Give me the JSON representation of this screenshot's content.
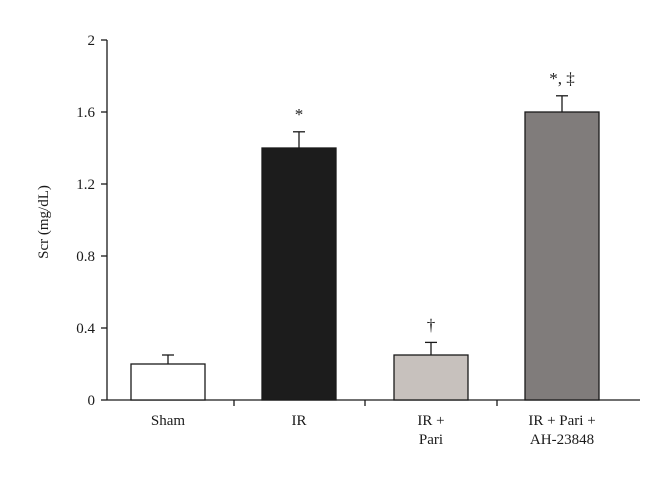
{
  "chart_data": {
    "type": "bar",
    "ylabel": "Scr (mg/dL)",
    "xlabel": "",
    "ylim": [
      0,
      2
    ],
    "yticks": [
      "0",
      "0.4",
      "0.8",
      "1.2",
      "1.6",
      "2"
    ],
    "grid": false,
    "categories": [
      [
        "Sham"
      ],
      [
        "IR"
      ],
      [
        "IR +",
        "Pari"
      ],
      [
        "IR + Pari +",
        "AH-23848"
      ]
    ],
    "values": [
      0.2,
      1.4,
      0.25,
      1.6
    ],
    "errors": [
      0.05,
      0.09,
      0.07,
      0.09
    ],
    "annotations": [
      "",
      "*",
      "†",
      "*, ‡"
    ],
    "bar_colors": [
      "#ffffff",
      "#1c1c1c",
      "#c7c1bd",
      "#807c7b"
    ]
  }
}
